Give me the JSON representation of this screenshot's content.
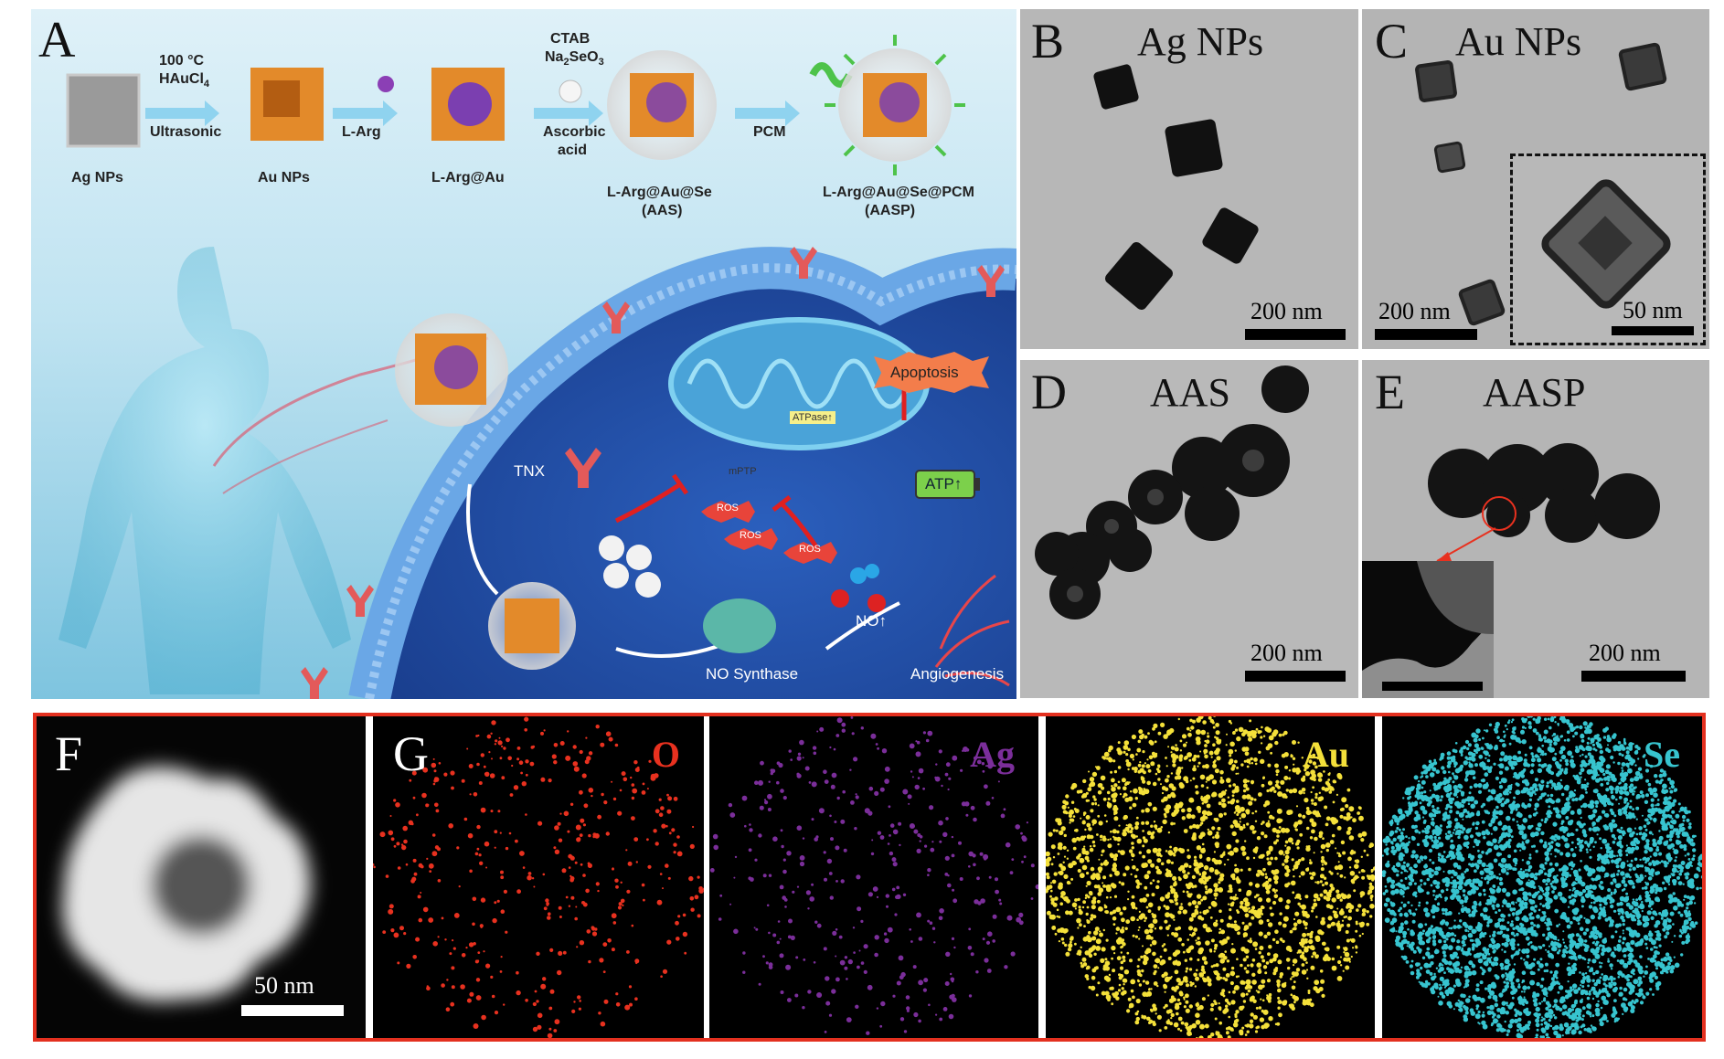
{
  "panel_a": {
    "letter": "A",
    "steps": {
      "s1": "100 °C",
      "s1b": "HAuCl",
      "s1b_sub": "4",
      "s1c": "Ultrasonic",
      "s2": "L-Arg",
      "s3a": "CTAB",
      "s3b": "Na",
      "s3b_sub": "2",
      "s3c": "SeO",
      "s3c_sub": "3",
      "s3d": "Ascorbic",
      "s3e": "acid",
      "s4": "PCM"
    },
    "products": {
      "p1": "Ag NPs",
      "p2": "Au NPs",
      "p3": "L-Arg@Au",
      "p4a": "L-Arg@Au@Se",
      "p4b": "(AAS)",
      "p5a": "L-Arg@Au@Se@PCM",
      "p5b": "(AASP)"
    },
    "cell": {
      "tnx": "TNX",
      "apoptosis": "Apoptosis",
      "atpase": "ATPase↑",
      "mptp": "mPTP",
      "ros": "ROS",
      "atp": "ATP↑",
      "no": "NO↑",
      "no_synthase": "NO Synthase",
      "angiogenesis": "Angiogenesis"
    }
  },
  "panel_b": {
    "letter": "B",
    "title": "Ag NPs",
    "scale": "200 nm"
  },
  "panel_c": {
    "letter": "C",
    "title": "Au NPs",
    "scale": "200 nm",
    "inset_scale": "50 nm"
  },
  "panel_d": {
    "letter": "D",
    "title": "AAS",
    "scale": "200 nm"
  },
  "panel_e": {
    "letter": "E",
    "title": "AASP",
    "scale": "200 nm"
  },
  "panel_f": {
    "letter": "F",
    "scale": "50 nm"
  },
  "panel_g": {
    "letter": "G",
    "maps": [
      {
        "label": "O",
        "color": "#e8311f"
      },
      {
        "label": "Ag",
        "color": "#7b2e9a"
      },
      {
        "label": "Au",
        "color": "#f4e03a"
      },
      {
        "label": "Se",
        "color": "#37c4cf"
      }
    ]
  },
  "colors": {
    "frame_red": "#e3301f",
    "membrane_blue": "#4f8fd6",
    "gold": "#e38a2a"
  }
}
